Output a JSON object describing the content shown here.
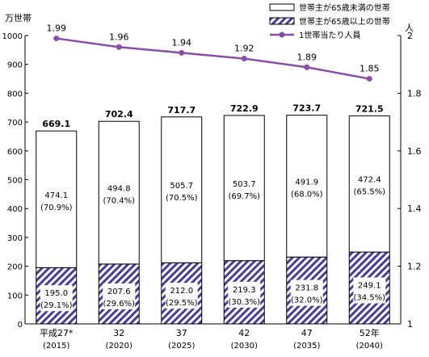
{
  "chart_data": {
    "type": "bar",
    "left_axis_label": "万世帯",
    "right_axis_label": "人",
    "left_ylim": [
      0,
      1000
    ],
    "left_ticks": [
      0,
      100,
      200,
      300,
      400,
      500,
      600,
      700,
      800,
      900,
      1000
    ],
    "right_ylim": [
      1,
      2
    ],
    "right_ticks": [
      "1",
      "1.2",
      "1.4",
      "1.6",
      "1.8",
      "2"
    ],
    "categories": [
      {
        "label": "平成27*",
        "sub": "(2015)"
      },
      {
        "label": "32",
        "sub": "(2020)"
      },
      {
        "label": "37",
        "sub": "(2025)"
      },
      {
        "label": "42",
        "sub": "(2030)"
      },
      {
        "label": "47",
        "sub": "(2035)"
      },
      {
        "label": "52年",
        "sub": "(2040)"
      }
    ],
    "totals": [
      669.1,
      702.4,
      717.7,
      722.9,
      723.7,
      721.5
    ],
    "totals_text": [
      "669.1",
      "702.4",
      "717.7",
      "722.9",
      "723.7",
      "721.5"
    ],
    "series": [
      {
        "name": "世帯主が65歳以上の世帯",
        "values": [
          195.0,
          207.6,
          212.0,
          219.3,
          231.8,
          249.1
        ],
        "labels": [
          "195.0",
          "207.6",
          "212.0",
          "219.3",
          "231.8",
          "249.1"
        ],
        "shares": [
          "(29.1%)",
          "(29.6%)",
          "(29.5%)",
          "(30.3%)",
          "(32.0%)",
          "(34.5%)"
        ]
      },
      {
        "name": "世帯主が65歳未満の世帯",
        "values": [
          474.1,
          494.8,
          505.7,
          503.7,
          491.9,
          472.4
        ],
        "labels": [
          "474.1",
          "494.8",
          "505.7",
          "503.7",
          "491.9",
          "472.4"
        ],
        "shares": [
          "(70.9%)",
          "(70.4%)",
          "(70.5%)",
          "(69.7%)",
          "(68.0%)",
          "(65.5%)"
        ]
      }
    ],
    "line_series": {
      "name": "1世帯当たり人員",
      "values": [
        1.99,
        1.96,
        1.94,
        1.92,
        1.89,
        1.85
      ],
      "labels": [
        "1.99",
        "1.96",
        "1.94",
        "1.92",
        "1.89",
        "1.85"
      ]
    },
    "legend_position": "top-right",
    "colors": {
      "hatch": "#4a3a9e",
      "line": "#8a4ca6",
      "bar_outline": "#000000"
    }
  }
}
